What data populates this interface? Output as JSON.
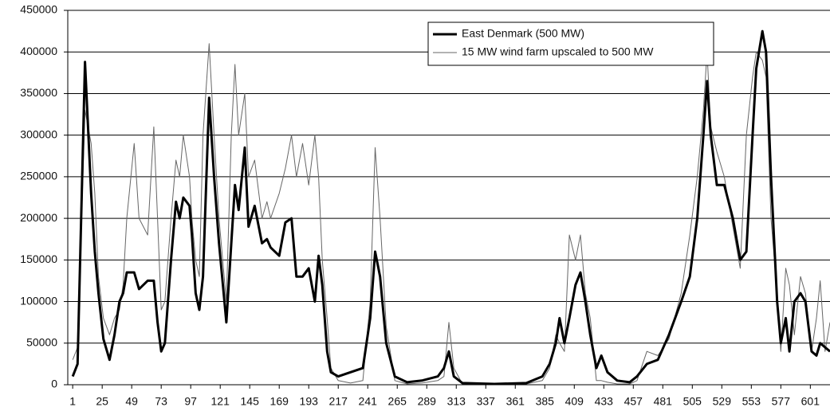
{
  "chart_data": {
    "type": "line",
    "x": [
      1,
      5,
      11,
      16,
      19,
      22,
      26,
      31,
      35,
      39,
      42,
      45,
      51,
      55,
      62,
      67,
      70,
      73,
      76,
      81,
      85,
      88,
      91,
      96,
      98,
      101,
      104,
      107,
      112,
      116,
      120,
      126,
      130,
      133,
      136,
      141,
      144,
      149,
      155,
      159,
      162,
      169,
      174,
      179,
      183,
      188,
      193,
      198,
      201,
      204,
      208,
      211,
      217,
      227,
      237,
      243,
      247,
      251,
      256,
      263,
      273,
      285,
      298,
      303,
      307,
      311,
      318,
      344,
      370,
      383,
      389,
      394,
      397,
      401,
      405,
      410,
      414,
      418,
      422,
      427,
      431,
      436,
      444,
      454,
      460,
      468,
      477,
      486,
      496,
      503,
      509,
      514,
      517,
      520,
      525,
      531,
      538,
      544,
      549,
      554,
      557,
      562,
      565,
      569,
      574,
      577,
      581,
      584,
      588,
      593,
      597,
      602,
      606,
      609,
      613,
      617
    ],
    "series": [
      {
        "name": "East Denmark (500 MW)",
        "color": "#000000",
        "width": 3,
        "values": [
          10000,
          25000,
          388000,
          230000,
          160000,
          110000,
          55000,
          30000,
          60000,
          100000,
          110000,
          135000,
          135000,
          115000,
          125000,
          125000,
          75000,
          40000,
          50000,
          150000,
          220000,
          200000,
          225000,
          215000,
          180000,
          110000,
          90000,
          130000,
          345000,
          250000,
          170000,
          75000,
          170000,
          240000,
          210000,
          285000,
          190000,
          215000,
          170000,
          175000,
          165000,
          155000,
          195000,
          200000,
          130000,
          130000,
          140000,
          100000,
          155000,
          120000,
          40000,
          15000,
          10000,
          15000,
          20000,
          80000,
          160000,
          130000,
          50000,
          10000,
          3000,
          5000,
          10000,
          20000,
          40000,
          10000,
          2000,
          1000,
          2000,
          10000,
          25000,
          50000,
          80000,
          50000,
          80000,
          120000,
          135000,
          100000,
          60000,
          20000,
          35000,
          15000,
          5000,
          3000,
          10000,
          25000,
          30000,
          60000,
          100000,
          130000,
          200000,
          300000,
          365000,
          300000,
          240000,
          240000,
          200000,
          150000,
          160000,
          300000,
          380000,
          425000,
          400000,
          250000,
          100000,
          50000,
          80000,
          40000,
          100000,
          110000,
          100000,
          40000,
          35000,
          50000,
          45000,
          40000
        ]
      },
      {
        "name": "15 MW wind farm upscaled to 500 MW",
        "color": "#666666",
        "width": 1,
        "values": [
          30000,
          45000,
          330000,
          290000,
          230000,
          130000,
          80000,
          60000,
          80000,
          90000,
          120000,
          200000,
          290000,
          200000,
          180000,
          310000,
          200000,
          90000,
          100000,
          200000,
          270000,
          250000,
          300000,
          250000,
          200000,
          150000,
          130000,
          300000,
          410000,
          300000,
          200000,
          100000,
          300000,
          385000,
          300000,
          350000,
          250000,
          270000,
          200000,
          220000,
          200000,
          230000,
          260000,
          300000,
          250000,
          290000,
          240000,
          300000,
          250000,
          150000,
          80000,
          20000,
          5000,
          2000,
          5000,
          100000,
          285000,
          200000,
          70000,
          5000,
          1000,
          2000,
          5000,
          10000,
          75000,
          20000,
          1000,
          500,
          1000,
          5000,
          20000,
          60000,
          50000,
          40000,
          180000,
          150000,
          180000,
          110000,
          80000,
          5000,
          5000,
          3000,
          1000,
          1000,
          5000,
          40000,
          35000,
          55000,
          110000,
          180000,
          250000,
          330000,
          400000,
          310000,
          280000,
          250000,
          190000,
          140000,
          300000,
          370000,
          400000,
          390000,
          370000,
          200000,
          110000,
          40000,
          140000,
          120000,
          60000,
          130000,
          110000,
          40000,
          80000,
          125000,
          40000,
          75000
        ]
      }
    ],
    "xlim": [
      -3,
      617
    ],
    "xticks": [
      1,
      25,
      49,
      73,
      97,
      121,
      145,
      169,
      193,
      217,
      241,
      265,
      289,
      313,
      337,
      361,
      385,
      409,
      433,
      457,
      481,
      505,
      529,
      553,
      577,
      601
    ],
    "ylim": [
      0,
      450000
    ],
    "yticks": [
      0,
      50000,
      100000,
      150000,
      200000,
      250000,
      300000,
      350000,
      400000,
      450000
    ],
    "grid": true,
    "legend": "upper right"
  }
}
